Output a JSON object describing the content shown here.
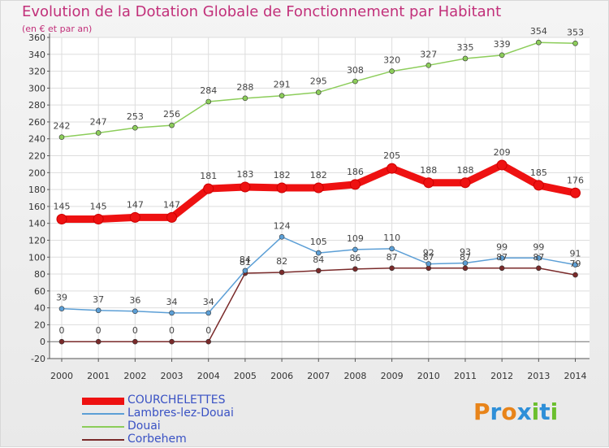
{
  "header": {
    "title": "Evolution de la Dotation Globale de Fonctionnement par Habitant",
    "subtitle": "(en € et par an)"
  },
  "brand": {
    "letters": [
      "P",
      "r",
      "o",
      "x",
      "i",
      "t",
      "i"
    ],
    "colors": [
      "#e8841a",
      "#2e8fd8",
      "#e8841a",
      "#2e8fd8",
      "#6bbf2e",
      "#2e8fd8",
      "#6bbf2e"
    ]
  },
  "chart_data": {
    "type": "line",
    "title": "Evolution de la Dotation Globale de Fonctionnement par Habitant",
    "subtitle": "(en € et par an)",
    "xlabel": "",
    "ylabel": "",
    "ylim": [
      -20,
      360
    ],
    "yticks": [
      -20,
      0,
      20,
      40,
      60,
      80,
      100,
      120,
      140,
      160,
      180,
      200,
      220,
      240,
      260,
      280,
      300,
      320,
      340,
      360
    ],
    "x": [
      "2000",
      "2001",
      "2002",
      "2003",
      "2004",
      "2005",
      "2006",
      "2007",
      "2008",
      "2009",
      "2010",
      "2011",
      "2012",
      "2013",
      "2014"
    ],
    "grid": true,
    "legend_position": "bottom-left",
    "series": [
      {
        "name": "COURCHELETTES",
        "color": "#ee1111",
        "values": [
          145,
          145,
          147,
          147,
          181,
          183,
          182,
          182,
          186,
          205,
          188,
          188,
          209,
          185,
          176
        ],
        "labels": [
          "145",
          "145",
          "147",
          "147",
          "181",
          "183",
          "182",
          "182",
          "186",
          "205",
          "188",
          "188",
          "209",
          "185",
          "176"
        ]
      },
      {
        "name": "Lambres-lez-Douai",
        "color": "#5c9fd6",
        "values": [
          39,
          37,
          36,
          34,
          34,
          84,
          124,
          105,
          109,
          110,
          92,
          93,
          99,
          99,
          91
        ],
        "labels": [
          "39",
          "37",
          "36",
          "34",
          "34",
          "84",
          "124",
          "105",
          "109",
          "110",
          "92",
          "93",
          "99",
          "99",
          "91"
        ]
      },
      {
        "name": "Douai",
        "color": "#8ccd5a",
        "values": [
          242,
          247,
          253,
          256,
          284,
          288,
          291,
          295,
          308,
          320,
          327,
          335,
          339,
          354,
          353
        ],
        "labels": [
          "242",
          "247",
          "253",
          "256",
          "284",
          "288",
          "291",
          "295",
          "308",
          "320",
          "327",
          "335",
          "339",
          "354",
          "353"
        ]
      },
      {
        "name": "Corbehem",
        "color": "#7a2a2a",
        "values": [
          0,
          0,
          0,
          0,
          0,
          81,
          82,
          84,
          86,
          87,
          87,
          87,
          87,
          87,
          79
        ],
        "labels": [
          "0",
          "0",
          "0",
          "0",
          "0",
          "81",
          "82",
          "84",
          "86",
          "87",
          "87",
          "87",
          "87",
          "87",
          "79"
        ]
      }
    ]
  }
}
